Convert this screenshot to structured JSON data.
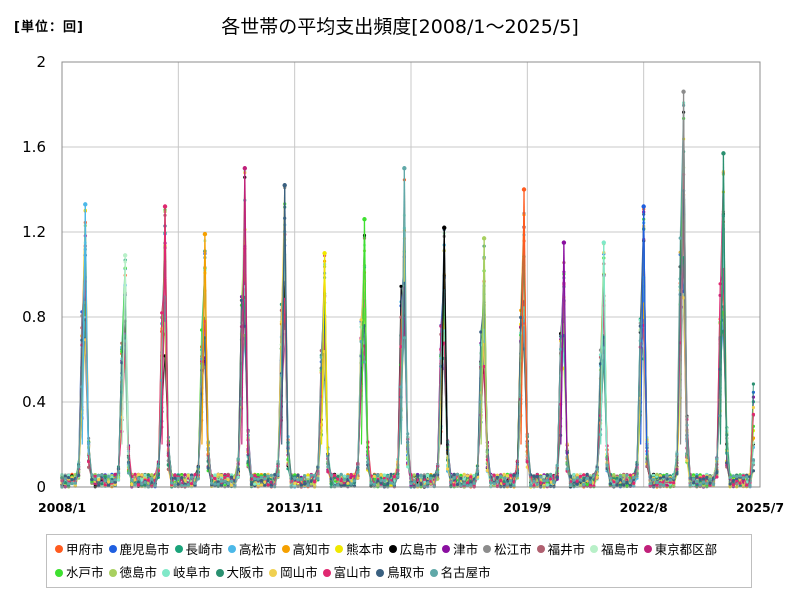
{
  "header": {
    "unit_label": "[単位：回]",
    "title": "各世帯の平均支出頻度[2008/1～2025/5]"
  },
  "chart_data": {
    "type": "line",
    "title": "各世帯の平均支出頻度[2008/1～2025/5]",
    "unit": "[単位：回]",
    "xlabel": "",
    "ylabel": "",
    "x_ticks": [
      "2008/1",
      "2010/12",
      "2013/11",
      "2016/10",
      "2019/9",
      "2022/8",
      "2025/7"
    ],
    "y_ticks": [
      "0",
      "0.4",
      "0.8",
      "1.2",
      "1.6",
      "2"
    ],
    "ylim": [
      0,
      2
    ],
    "xlim": [
      "2008/1",
      "2025/7"
    ],
    "grid": true,
    "legend_position": "bottom",
    "pattern": "seasonal spike each year peaking near August; near-zero values in other months",
    "annual_peaks": [
      {
        "year": 2008,
        "max": 1.33
      },
      {
        "year": 2009,
        "max": 1.09
      },
      {
        "year": 2010,
        "max": 1.32
      },
      {
        "year": 2011,
        "max": 1.19
      },
      {
        "year": 2012,
        "max": 1.5
      },
      {
        "year": 2013,
        "max": 1.42
      },
      {
        "year": 2014,
        "max": 1.1
      },
      {
        "year": 2015,
        "max": 1.26
      },
      {
        "year": 2016,
        "max": 1.5
      },
      {
        "year": 2017,
        "max": 1.22
      },
      {
        "year": 2018,
        "max": 1.17
      },
      {
        "year": 2019,
        "max": 1.4
      },
      {
        "year": 2020,
        "max": 1.15
      },
      {
        "year": 2021,
        "max": 1.15
      },
      {
        "year": 2022,
        "max": 1.32
      },
      {
        "year": 2023,
        "max": 1.86
      },
      {
        "year": 2024,
        "max": 1.57
      }
    ],
    "series": [
      {
        "name": "甲府市",
        "color": "#ff5b1f"
      },
      {
        "name": "鹿児島市",
        "color": "#1f5fe0"
      },
      {
        "name": "長崎市",
        "color": "#1aa37a"
      },
      {
        "name": "高松市",
        "color": "#4cb8e8"
      },
      {
        "name": "高知市",
        "color": "#f5a000"
      },
      {
        "name": "熊本市",
        "color": "#f0e800"
      },
      {
        "name": "広島市",
        "color": "#000000"
      },
      {
        "name": "津市",
        "color": "#8a0fa0"
      },
      {
        "name": "松江市",
        "color": "#8c8c8c"
      },
      {
        "name": "福井市",
        "color": "#b06070"
      },
      {
        "name": "福島市",
        "color": "#b8f0c8"
      },
      {
        "name": "東京都区部",
        "color": "#c0207a"
      },
      {
        "name": "水戸市",
        "color": "#3ee030"
      },
      {
        "name": "徳島市",
        "color": "#a8d060"
      },
      {
        "name": "岐阜市",
        "color": "#80e8c8"
      },
      {
        "name": "大阪市",
        "color": "#2a9070"
      },
      {
        "name": "岡山市",
        "color": "#f0d050"
      },
      {
        "name": "富山市",
        "color": "#e02870"
      },
      {
        "name": "鳥取市",
        "color": "#3a6080"
      },
      {
        "name": "名古屋市",
        "color": "#60a8a8"
      }
    ]
  }
}
